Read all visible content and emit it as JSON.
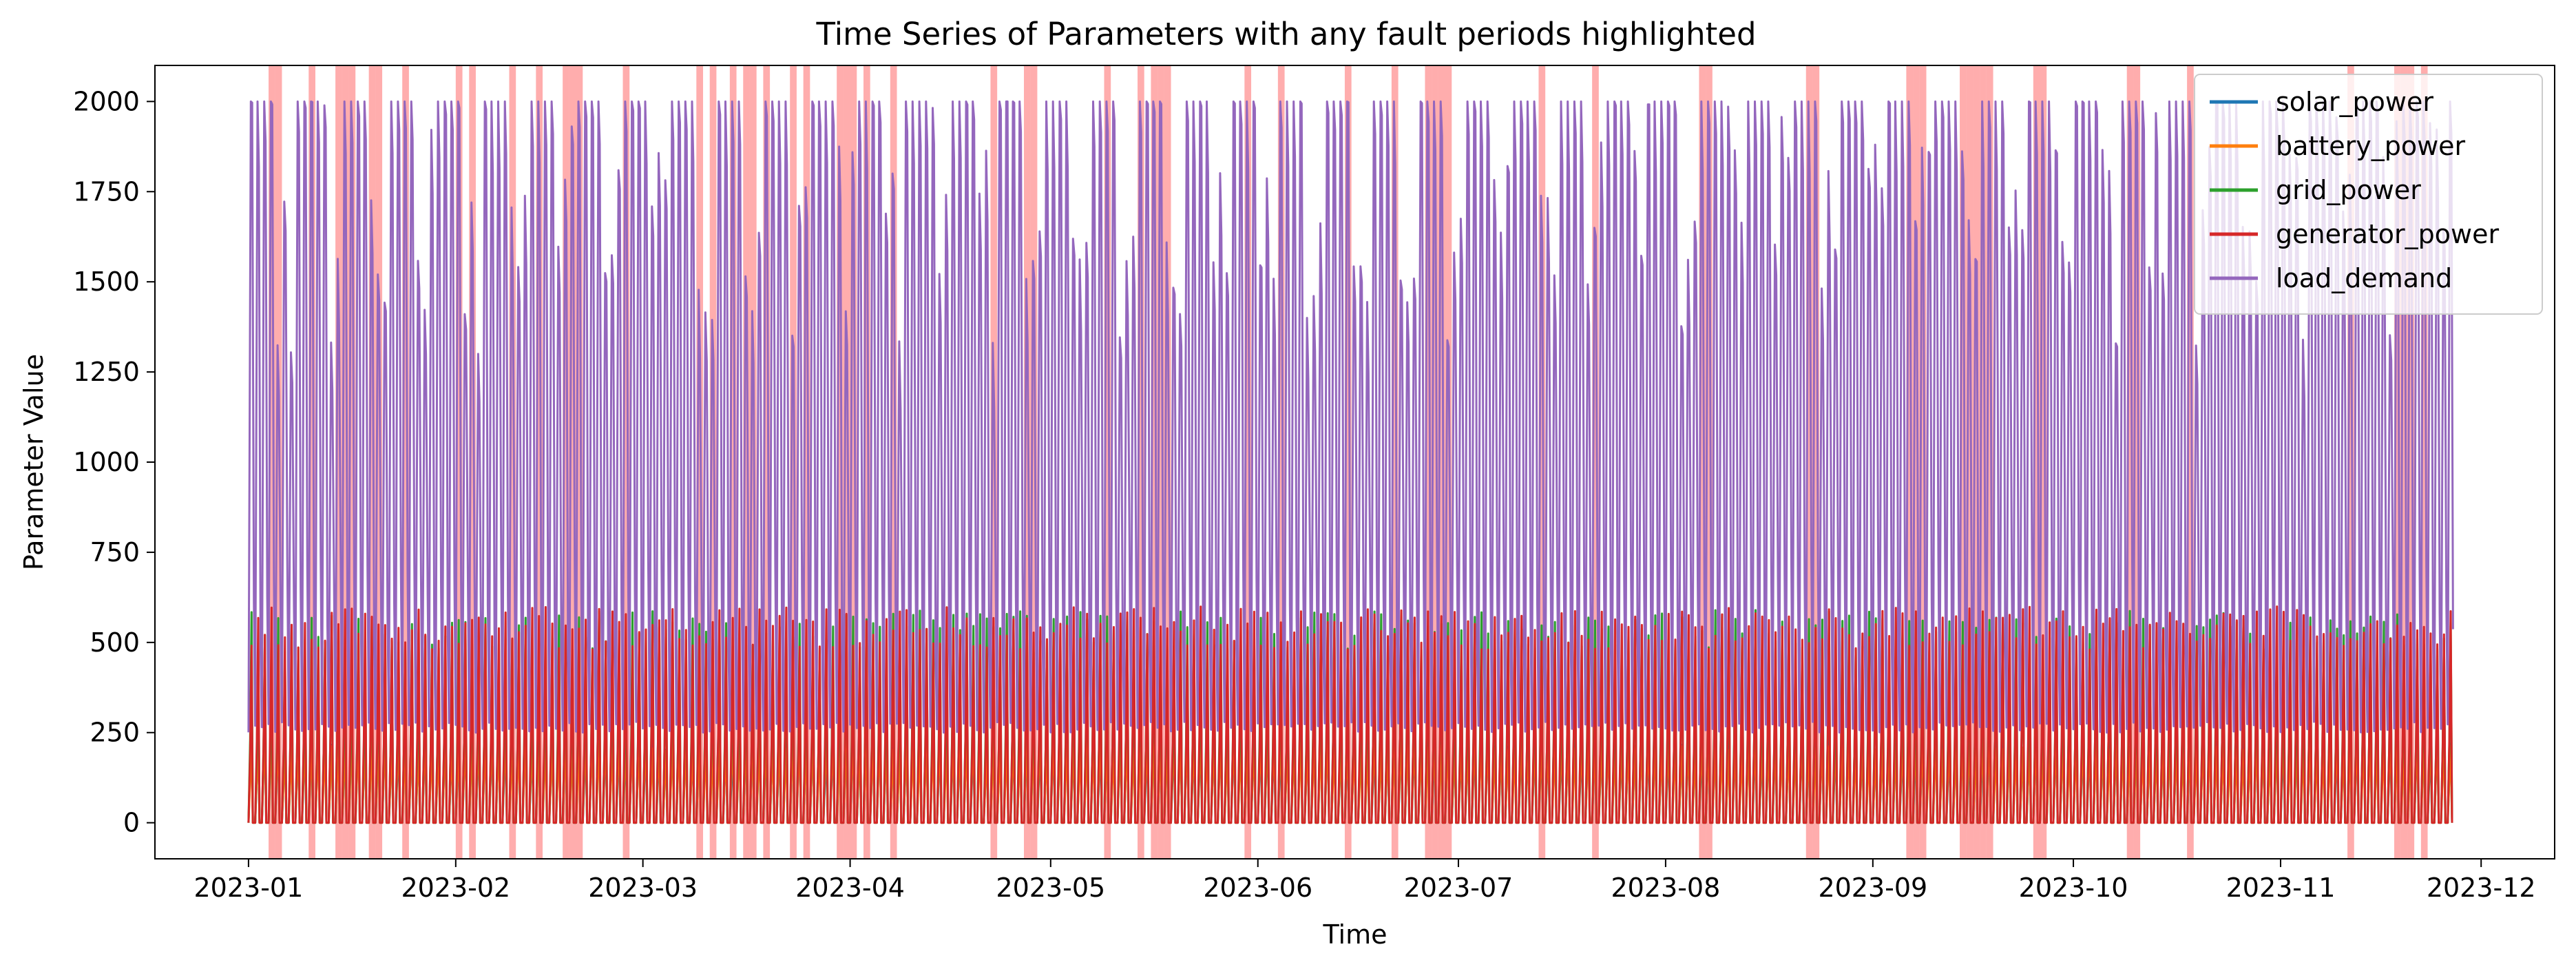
{
  "chart_data": {
    "type": "line",
    "title": "Time Series of Parameters with any fault periods highlighted",
    "xlabel": "Time",
    "ylabel": "Parameter Value",
    "xlim": [
      "2022-12-18",
      "2023-12-12"
    ],
    "ylim": [
      -100,
      2100
    ],
    "x_ticks": [
      "2023-01",
      "2023-02",
      "2023-03",
      "2023-04",
      "2023-05",
      "2023-06",
      "2023-07",
      "2023-08",
      "2023-09",
      "2023-10",
      "2023-11",
      "2023-12"
    ],
    "y_ticks": [
      0,
      250,
      500,
      750,
      1000,
      1250,
      1500,
      1750,
      2000
    ],
    "x_range_data": [
      "2023-01-01",
      "2023-11-26"
    ],
    "legend_position": "upper-right",
    "grid": false,
    "series": [
      {
        "name": "solar_power",
        "color": "#1f77b4",
        "min": 0,
        "max": 250
      },
      {
        "name": "battery_power",
        "color": "#ff7f0e",
        "min": 0,
        "max": 250
      },
      {
        "name": "grid_power",
        "color": "#2ca02c",
        "min": 0,
        "max": 590
      },
      {
        "name": "generator_power",
        "color": "#d62728",
        "min": 0,
        "max": 600
      },
      {
        "name": "load_demand",
        "color": "#9467bd",
        "min": 250,
        "max": 2000
      }
    ],
    "fault_periods": [
      "2023-01-04",
      "2023-01-05",
      "2023-01-10",
      "2023-01-14",
      "2023-01-15",
      "2023-01-16",
      "2023-01-19",
      "2023-01-20",
      "2023-01-24",
      "2023-02-01",
      "2023-02-03",
      "2023-02-09",
      "2023-02-13",
      "2023-02-17",
      "2023-02-18",
      "2023-02-19",
      "2023-02-26",
      "2023-03-09",
      "2023-03-11",
      "2023-03-14",
      "2023-03-16",
      "2023-03-17",
      "2023-03-19",
      "2023-03-23",
      "2023-03-25",
      "2023-03-30",
      "2023-03-31",
      "2023-04-01",
      "2023-04-03",
      "2023-04-07",
      "2023-04-22",
      "2023-04-27",
      "2023-04-28",
      "2023-05-09",
      "2023-05-14",
      "2023-05-16",
      "2023-05-17",
      "2023-05-18",
      "2023-05-30",
      "2023-06-04",
      "2023-06-14",
      "2023-06-21",
      "2023-06-26",
      "2023-06-27",
      "2023-06-28",
      "2023-06-29",
      "2023-07-13",
      "2023-07-21",
      "2023-08-06",
      "2023-08-07",
      "2023-08-22",
      "2023-08-23",
      "2023-09-06",
      "2023-09-07",
      "2023-09-08",
      "2023-09-14",
      "2023-09-15",
      "2023-09-16",
      "2023-09-17",
      "2023-09-18",
      "2023-09-25",
      "2023-09-26",
      "2023-10-09",
      "2023-10-10",
      "2023-10-18",
      "2023-11-11",
      "2023-11-18",
      "2023-11-19",
      "2023-11-20",
      "2023-11-22"
    ]
  }
}
